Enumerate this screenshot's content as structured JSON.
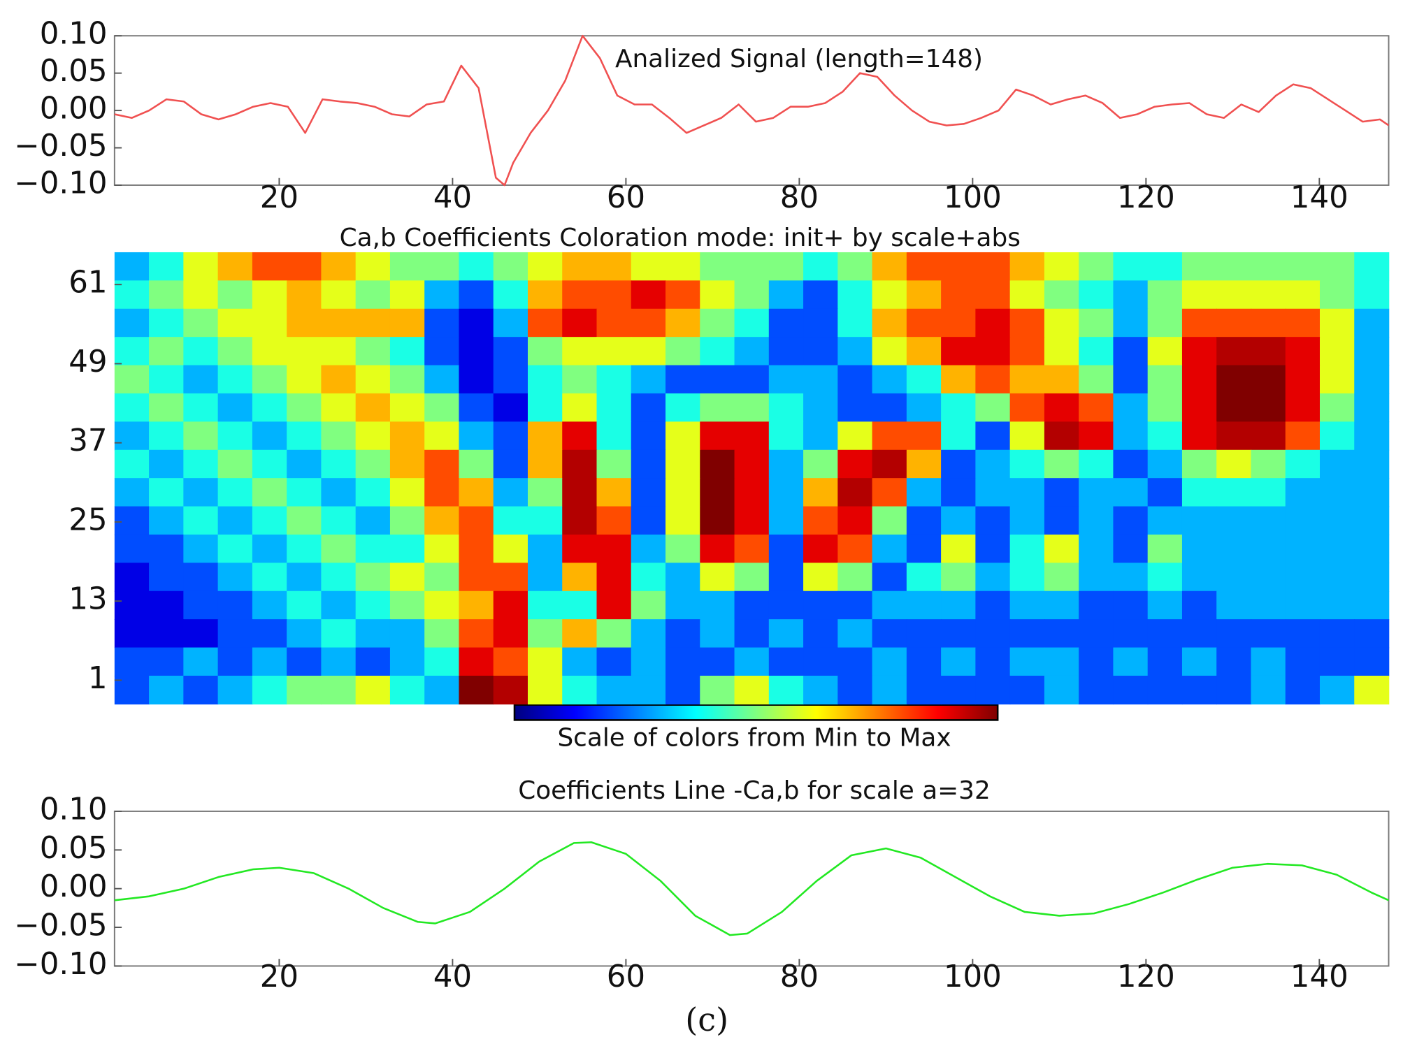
{
  "caption": "(c)",
  "chart_data": [
    {
      "type": "line",
      "title": "Analized Signal (length=148)",
      "x": [
        1,
        3,
        5,
        7,
        9,
        11,
        13,
        15,
        17,
        19,
        21,
        23,
        25,
        27,
        29,
        31,
        33,
        35,
        37,
        39,
        41,
        43,
        45,
        46,
        47,
        49,
        51,
        53,
        55,
        57,
        59,
        61,
        63,
        65,
        67,
        69,
        71,
        73,
        75,
        77,
        79,
        81,
        83,
        85,
        87,
        89,
        91,
        93,
        95,
        97,
        99,
        101,
        103,
        105,
        107,
        109,
        111,
        113,
        115,
        117,
        119,
        121,
        123,
        125,
        127,
        129,
        131,
        133,
        135,
        137,
        139,
        141,
        143,
        145,
        147,
        148
      ],
      "series": [
        {
          "name": "signal",
          "color": "#f05050",
          "values": [
            -0.005,
            -0.01,
            0.0,
            0.015,
            0.012,
            -0.005,
            -0.012,
            -0.005,
            0.005,
            0.01,
            0.005,
            -0.03,
            0.015,
            0.012,
            0.01,
            0.005,
            -0.005,
            -0.008,
            0.008,
            0.012,
            0.06,
            0.03,
            -0.09,
            -0.1,
            -0.07,
            -0.03,
            0.0,
            0.04,
            0.1,
            0.07,
            0.02,
            0.008,
            0.008,
            -0.01,
            -0.03,
            -0.02,
            -0.01,
            0.008,
            -0.015,
            -0.01,
            0.005,
            0.005,
            0.01,
            0.025,
            0.05,
            0.045,
            0.02,
            0.0,
            -0.015,
            -0.02,
            -0.018,
            -0.01,
            0.0,
            0.028,
            0.02,
            0.008,
            0.015,
            0.02,
            0.01,
            -0.01,
            -0.005,
            0.005,
            0.008,
            0.01,
            -0.005,
            -0.01,
            0.008,
            -0.002,
            0.02,
            0.035,
            0.03,
            0.015,
            0.0,
            -0.015,
            -0.012,
            -0.02
          ]
        }
      ],
      "xlim": [
        1,
        148
      ],
      "xticks": [
        20,
        40,
        60,
        80,
        100,
        120,
        140
      ],
      "ylim": [
        -0.1,
        0.1
      ],
      "yticks": [
        {
          "value": 0.1,
          "label": "0.10"
        },
        {
          "value": 0.05,
          "label": "0.05"
        },
        {
          "value": 0,
          "label": "0.00"
        },
        {
          "value": -0.05,
          "label": "−0.05"
        },
        {
          "value": -0.1,
          "label": "−0.10"
        }
      ]
    },
    {
      "type": "heatmap",
      "title": "Ca,b Coefficients Coloration mode: init+ by scale+abs",
      "colorbar_label": "Scale of colors from Min to Max",
      "xlim": [
        1,
        148
      ],
      "ylim": [
        -2.6,
        65.9
      ],
      "yticks": [
        1,
        13,
        25,
        37,
        49,
        61
      ],
      "values": [
        [
          0.3,
          0.4,
          0.6,
          0.7,
          0.8,
          0.8,
          0.7,
          0.6,
          0.5,
          0.5,
          0.4,
          0.5,
          0.6,
          0.7,
          0.7,
          0.6,
          0.6,
          0.5,
          0.5,
          0.5,
          0.4,
          0.5,
          0.7,
          0.8,
          0.8,
          0.8,
          0.7,
          0.6,
          0.5,
          0.4,
          0.4,
          0.5,
          0.5,
          0.5,
          0.5,
          0.5,
          0.4
        ],
        [
          0.4,
          0.5,
          0.6,
          0.5,
          0.6,
          0.7,
          0.6,
          0.5,
          0.6,
          0.3,
          0.2,
          0.4,
          0.7,
          0.8,
          0.8,
          0.9,
          0.8,
          0.6,
          0.5,
          0.3,
          0.2,
          0.4,
          0.6,
          0.7,
          0.8,
          0.8,
          0.6,
          0.5,
          0.4,
          0.3,
          0.5,
          0.6,
          0.6,
          0.6,
          0.6,
          0.5,
          0.4
        ],
        [
          0.3,
          0.4,
          0.5,
          0.6,
          0.6,
          0.7,
          0.7,
          0.7,
          0.7,
          0.2,
          0.1,
          0.3,
          0.8,
          0.9,
          0.8,
          0.8,
          0.7,
          0.5,
          0.4,
          0.2,
          0.2,
          0.4,
          0.7,
          0.8,
          0.8,
          0.9,
          0.8,
          0.6,
          0.5,
          0.3,
          0.5,
          0.8,
          0.8,
          0.8,
          0.8,
          0.6,
          0.3
        ],
        [
          0.4,
          0.5,
          0.4,
          0.5,
          0.6,
          0.6,
          0.6,
          0.5,
          0.4,
          0.2,
          0.1,
          0.2,
          0.5,
          0.6,
          0.6,
          0.6,
          0.5,
          0.4,
          0.3,
          0.2,
          0.2,
          0.3,
          0.6,
          0.7,
          0.9,
          0.9,
          0.8,
          0.6,
          0.4,
          0.2,
          0.6,
          0.9,
          0.95,
          0.95,
          0.9,
          0.6,
          0.3
        ],
        [
          0.5,
          0.4,
          0.3,
          0.4,
          0.5,
          0.6,
          0.7,
          0.6,
          0.5,
          0.3,
          0.1,
          0.2,
          0.4,
          0.5,
          0.4,
          0.3,
          0.2,
          0.2,
          0.2,
          0.3,
          0.3,
          0.2,
          0.3,
          0.4,
          0.7,
          0.8,
          0.7,
          0.7,
          0.5,
          0.2,
          0.5,
          0.9,
          1,
          1,
          0.9,
          0.6,
          0.3
        ],
        [
          0.4,
          0.5,
          0.4,
          0.3,
          0.4,
          0.5,
          0.6,
          0.7,
          0.6,
          0.5,
          0.2,
          0.1,
          0.4,
          0.6,
          0.4,
          0.2,
          0.4,
          0.5,
          0.5,
          0.4,
          0.3,
          0.2,
          0.2,
          0.3,
          0.4,
          0.5,
          0.8,
          0.9,
          0.8,
          0.3,
          0.5,
          0.9,
          1,
          1,
          0.9,
          0.5,
          0.3
        ],
        [
          0.3,
          0.4,
          0.5,
          0.4,
          0.3,
          0.4,
          0.5,
          0.6,
          0.7,
          0.6,
          0.3,
          0.2,
          0.7,
          0.9,
          0.4,
          0.2,
          0.6,
          0.9,
          0.9,
          0.4,
          0.3,
          0.6,
          0.8,
          0.8,
          0.4,
          0.2,
          0.6,
          0.95,
          0.9,
          0.3,
          0.4,
          0.9,
          0.95,
          0.95,
          0.8,
          0.4,
          0.3
        ],
        [
          0.4,
          0.3,
          0.4,
          0.5,
          0.4,
          0.3,
          0.4,
          0.5,
          0.7,
          0.8,
          0.5,
          0.2,
          0.7,
          0.95,
          0.5,
          0.2,
          0.6,
          1,
          0.9,
          0.3,
          0.5,
          0.9,
          0.95,
          0.7,
          0.2,
          0.3,
          0.4,
          0.5,
          0.4,
          0.2,
          0.3,
          0.5,
          0.6,
          0.5,
          0.4,
          0.3,
          0.3
        ],
        [
          0.3,
          0.4,
          0.3,
          0.4,
          0.5,
          0.4,
          0.3,
          0.4,
          0.6,
          0.8,
          0.7,
          0.3,
          0.5,
          0.95,
          0.7,
          0.2,
          0.6,
          1,
          0.9,
          0.3,
          0.7,
          0.95,
          0.8,
          0.3,
          0.2,
          0.3,
          0.3,
          0.2,
          0.3,
          0.3,
          0.2,
          0.4,
          0.4,
          0.4,
          0.3,
          0.3,
          0.3
        ],
        [
          0.2,
          0.3,
          0.4,
          0.3,
          0.4,
          0.5,
          0.4,
          0.3,
          0.5,
          0.7,
          0.8,
          0.4,
          0.4,
          0.95,
          0.8,
          0.2,
          0.6,
          1,
          0.9,
          0.3,
          0.8,
          0.9,
          0.5,
          0.2,
          0.3,
          0.2,
          0.3,
          0.2,
          0.3,
          0.2,
          0.3,
          0.3,
          0.3,
          0.3,
          0.3,
          0.3,
          0.3
        ],
        [
          0.2,
          0.2,
          0.3,
          0.4,
          0.3,
          0.4,
          0.5,
          0.4,
          0.4,
          0.6,
          0.8,
          0.6,
          0.3,
          0.9,
          0.9,
          0.3,
          0.5,
          0.9,
          0.8,
          0.2,
          0.9,
          0.8,
          0.3,
          0.2,
          0.6,
          0.2,
          0.4,
          0.6,
          0.3,
          0.2,
          0.5,
          0.3,
          0.3,
          0.3,
          0.3,
          0.3,
          0.3
        ],
        [
          0.1,
          0.2,
          0.2,
          0.3,
          0.4,
          0.3,
          0.4,
          0.5,
          0.6,
          0.5,
          0.8,
          0.8,
          0.3,
          0.7,
          0.9,
          0.4,
          0.3,
          0.6,
          0.5,
          0.2,
          0.6,
          0.5,
          0.2,
          0.4,
          0.5,
          0.3,
          0.4,
          0.5,
          0.3,
          0.3,
          0.4,
          0.3,
          0.3,
          0.3,
          0.3,
          0.3,
          0.3
        ],
        [
          0.1,
          0.1,
          0.2,
          0.2,
          0.3,
          0.4,
          0.3,
          0.4,
          0.5,
          0.6,
          0.7,
          0.9,
          0.4,
          0.4,
          0.9,
          0.5,
          0.3,
          0.3,
          0.2,
          0.2,
          0.2,
          0.2,
          0.3,
          0.3,
          0.3,
          0.2,
          0.3,
          0.3,
          0.2,
          0.2,
          0.3,
          0.2,
          0.3,
          0.3,
          0.3,
          0.3,
          0.3
        ],
        [
          0.1,
          0.1,
          0.1,
          0.2,
          0.2,
          0.3,
          0.4,
          0.3,
          0.3,
          0.5,
          0.8,
          0.9,
          0.5,
          0.7,
          0.5,
          0.3,
          0.2,
          0.3,
          0.2,
          0.3,
          0.2,
          0.3,
          0.2,
          0.2,
          0.2,
          0.2,
          0.2,
          0.2,
          0.2,
          0.2,
          0.2,
          0.2,
          0.2,
          0.2,
          0.2,
          0.2,
          0.2
        ],
        [
          0.2,
          0.2,
          0.3,
          0.2,
          0.3,
          0.2,
          0.3,
          0.2,
          0.3,
          0.4,
          0.9,
          0.8,
          0.6,
          0.3,
          0.2,
          0.3,
          0.2,
          0.2,
          0.3,
          0.2,
          0.2,
          0.2,
          0.3,
          0.2,
          0.3,
          0.2,
          0.3,
          0.3,
          0.2,
          0.3,
          0.2,
          0.3,
          0.2,
          0.3,
          0.2,
          0.2,
          0.2
        ],
        [
          0.2,
          0.3,
          0.2,
          0.3,
          0.4,
          0.5,
          0.5,
          0.6,
          0.4,
          0.3,
          1,
          0.95,
          0.6,
          0.4,
          0.3,
          0.3,
          0.2,
          0.5,
          0.6,
          0.4,
          0.3,
          0.2,
          0.3,
          0.2,
          0.2,
          0.2,
          0.2,
          0.3,
          0.2,
          0.2,
          0.2,
          0.2,
          0.2,
          0.3,
          0.2,
          0.3,
          0.6
        ]
      ]
    },
    {
      "type": "line",
      "title": "Coefficients Line -Ca,b for scale a=32",
      "x": [
        1,
        5,
        9,
        13,
        17,
        20,
        24,
        28,
        32,
        36,
        38,
        42,
        46,
        50,
        54,
        56,
        60,
        64,
        68,
        72,
        74,
        78,
        82,
        86,
        90,
        94,
        98,
        102,
        106,
        110,
        114,
        118,
        122,
        126,
        130,
        134,
        138,
        142,
        146,
        148
      ],
      "series": [
        {
          "name": "coefficients",
          "color": "#22e822",
          "values": [
            -0.015,
            -0.01,
            0.0,
            0.015,
            0.025,
            0.027,
            0.02,
            0.0,
            -0.025,
            -0.043,
            -0.045,
            -0.03,
            0.0,
            0.035,
            0.059,
            0.06,
            0.045,
            0.01,
            -0.035,
            -0.06,
            -0.058,
            -0.03,
            0.01,
            0.043,
            0.052,
            0.04,
            0.015,
            -0.01,
            -0.03,
            -0.035,
            -0.032,
            -0.02,
            -0.005,
            0.012,
            0.027,
            0.032,
            0.03,
            0.018,
            -0.005,
            -0.015
          ]
        }
      ],
      "xlim": [
        1,
        148
      ],
      "xticks": [
        20,
        40,
        60,
        80,
        100,
        120,
        140
      ],
      "ylim": [
        -0.1,
        0.1
      ],
      "yticks": [
        {
          "value": 0.1,
          "label": "0.10"
        },
        {
          "value": 0.05,
          "label": "0.05"
        },
        {
          "value": 0,
          "label": "0.00"
        },
        {
          "value": -0.05,
          "label": "−0.05"
        },
        {
          "value": -0.1,
          "label": "−0.10"
        }
      ]
    }
  ]
}
